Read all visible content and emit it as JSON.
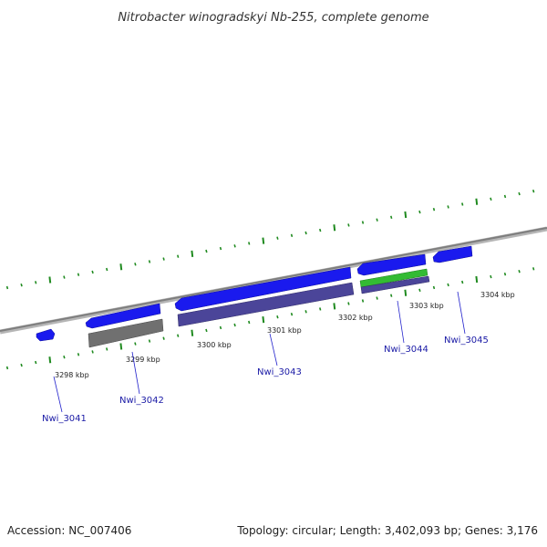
{
  "title": "Nitrobacter winogradskyi Nb-255, complete genome",
  "footer": {
    "accession": "Accession: NC_007406",
    "summary": "Topology: circular; Length: 3,402,093 bp; Genes: 3,176"
  },
  "colors": {
    "backbone": "#8a8a8a",
    "tick": "#1f8a1f",
    "forward_gene": "#1a1aee",
    "cds_purple": "#4b4599",
    "cds_gray": "#666666",
    "rna_green": "#33bb33",
    "label_line": "#2222cc"
  },
  "scale_labels": [
    {
      "text": "3298 kbp"
    },
    {
      "text": "3299 kbp"
    },
    {
      "text": "3300 kbp"
    },
    {
      "text": "3301 kbp"
    },
    {
      "text": "3302 kbp"
    },
    {
      "text": "3303 kbp"
    },
    {
      "text": "3304 kbp"
    }
  ],
  "genes": [
    {
      "label": "Nwi_3041"
    },
    {
      "label": "Nwi_3042"
    },
    {
      "label": "Nwi_3043"
    },
    {
      "label": "Nwi_3044"
    },
    {
      "label": "Nwi_3045"
    }
  ]
}
